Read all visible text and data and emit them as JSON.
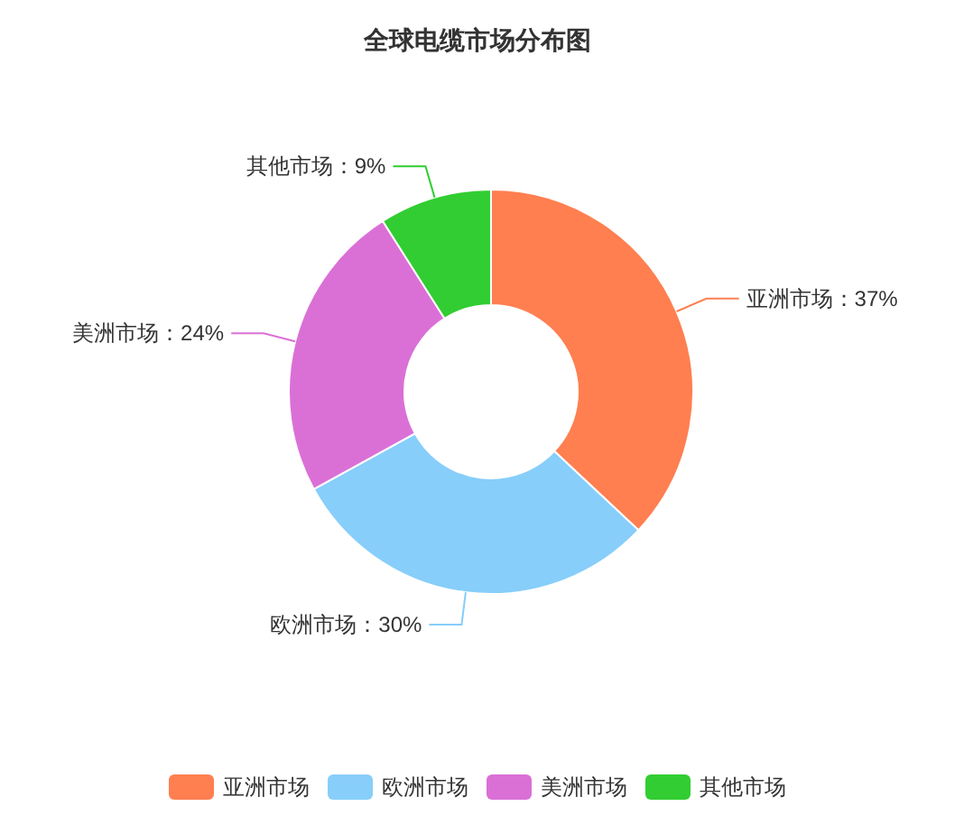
{
  "chart_data": {
    "type": "donut",
    "title": "全球电缆市场分布图",
    "categories": [
      "亚洲市场",
      "欧洲市场",
      "美洲市场",
      "其他市场"
    ],
    "values": [
      37,
      30,
      24,
      9
    ],
    "colors": [
      "#ff7f50",
      "#87cefa",
      "#da70d6",
      "#32cd32"
    ],
    "value_labels": [
      "亚洲市场：37%",
      "欧洲市场：30%",
      "美洲市场：24%",
      "其他市场：9%"
    ],
    "legend": "bottom"
  }
}
